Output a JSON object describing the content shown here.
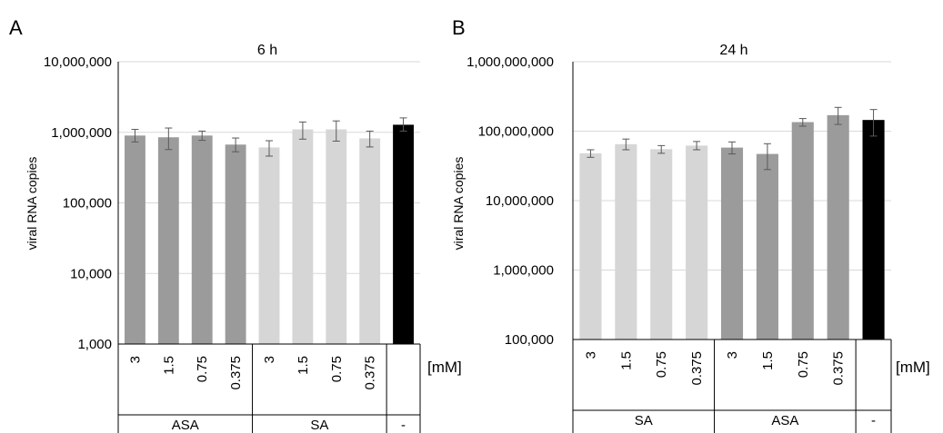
{
  "chart_data": [
    {
      "type": "bar",
      "panel": "A",
      "title": "6 h",
      "ylabel": "viral RNA copies",
      "yscale": "log",
      "ylim": [
        1000,
        10000000
      ],
      "yticks": [
        "1,000",
        "10,000",
        "100,000",
        "1,000,000",
        "10,000,000"
      ],
      "categories": [
        "3",
        "1.5",
        "0.75",
        "0.375",
        "3",
        "1.5",
        "0.75",
        "0.375",
        ""
      ],
      "groups": [
        {
          "label": "ASA",
          "span": 4
        },
        {
          "label": "SA",
          "span": 4
        },
        {
          "label": "-",
          "span": 1
        }
      ],
      "unit_label": "[mM]",
      "values": [
        900000,
        850000,
        900000,
        670000,
        610000,
        1100000,
        1100000,
        820000,
        1280000
      ],
      "errors_low": [
        170000,
        280000,
        130000,
        140000,
        150000,
        300000,
        350000,
        200000,
        240000
      ],
      "errors_high": [
        200000,
        300000,
        140000,
        160000,
        150000,
        300000,
        350000,
        220000,
        320000
      ],
      "bar_colors": [
        "#9b9b9b",
        "#9b9b9b",
        "#9b9b9b",
        "#9b9b9b",
        "#d6d6d6",
        "#d6d6d6",
        "#d6d6d6",
        "#d6d6d6",
        "#000000"
      ],
      "gridlines": true
    },
    {
      "type": "bar",
      "panel": "B",
      "title": "24 h",
      "ylabel": "viral RNA copies",
      "yscale": "log",
      "ylim": [
        100000,
        1000000000
      ],
      "yticks": [
        "100,000",
        "1,000,000",
        "10,000,000",
        "100,000,000",
        "1,000,000,000"
      ],
      "categories": [
        "3",
        "1.5",
        "0.75",
        "0.375",
        "3",
        "1.5",
        "0.75",
        "0.375",
        ""
      ],
      "groups": [
        {
          "label": "SA",
          "span": 4
        },
        {
          "label": "ASA",
          "span": 4
        },
        {
          "label": "-",
          "span": 1
        }
      ],
      "unit_label": "[mM]",
      "values": [
        48000000,
        65000000,
        55000000,
        62000000,
        58000000,
        47000000,
        135000000,
        170000000,
        145000000
      ],
      "errors_low": [
        6000000,
        11000000,
        7000000,
        8000000,
        11000000,
        19000000,
        17000000,
        45000000,
        60000000
      ],
      "errors_high": [
        6000000,
        12000000,
        7000000,
        9000000,
        12000000,
        19000000,
        17000000,
        50000000,
        60000000
      ],
      "bar_colors": [
        "#d6d6d6",
        "#d6d6d6",
        "#d6d6d6",
        "#d6d6d6",
        "#9b9b9b",
        "#9b9b9b",
        "#9b9b9b",
        "#9b9b9b",
        "#000000"
      ],
      "gridlines": true
    }
  ]
}
